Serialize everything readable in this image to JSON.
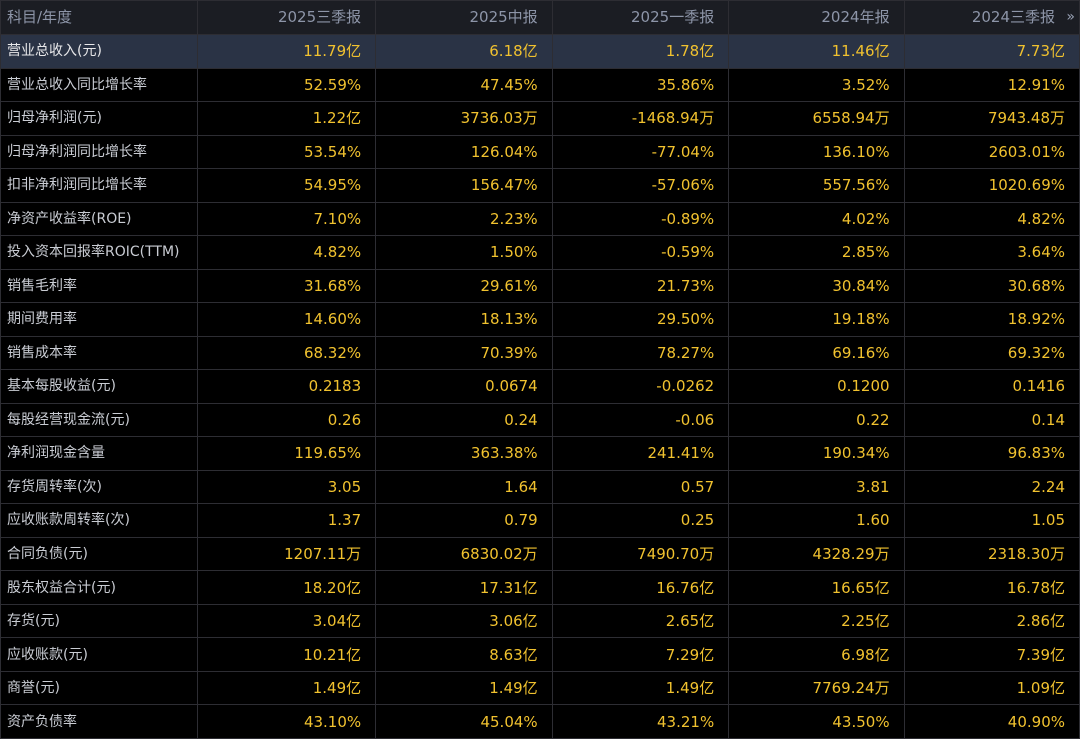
{
  "header": {
    "label": "科目/年度",
    "periods": [
      "2025三季报",
      "2025中报",
      "2025一季报",
      "2024年报",
      "2024三季报"
    ],
    "expand_icon": "»"
  },
  "colors": {
    "value_text": "#f1c22f",
    "label_text": "#c9ccd3",
    "header_text": "#8d95a8",
    "selected_row_bg": "#2a3345"
  },
  "rows": [
    {
      "label": "营业总收入(元)",
      "values": [
        "11.79亿",
        "6.18亿",
        "1.78亿",
        "11.46亿",
        "7.73亿"
      ]
    },
    {
      "label": "营业总收入同比增长率",
      "values": [
        "52.59%",
        "47.45%",
        "35.86%",
        "3.52%",
        "12.91%"
      ]
    },
    {
      "label": "归母净利润(元)",
      "values": [
        "1.22亿",
        "3736.03万",
        "-1468.94万",
        "6558.94万",
        "7943.48万"
      ]
    },
    {
      "label": "归母净利润同比增长率",
      "values": [
        "53.54%",
        "126.04%",
        "-77.04%",
        "136.10%",
        "2603.01%"
      ]
    },
    {
      "label": "扣非净利润同比增长率",
      "values": [
        "54.95%",
        "156.47%",
        "-57.06%",
        "557.56%",
        "1020.69%"
      ]
    },
    {
      "label": "净资产收益率(ROE)",
      "values": [
        "7.10%",
        "2.23%",
        "-0.89%",
        "4.02%",
        "4.82%"
      ]
    },
    {
      "label": "投入资本回报率ROIC(TTM)",
      "values": [
        "4.82%",
        "1.50%",
        "-0.59%",
        "2.85%",
        "3.64%"
      ]
    },
    {
      "label": "销售毛利率",
      "values": [
        "31.68%",
        "29.61%",
        "21.73%",
        "30.84%",
        "30.68%"
      ]
    },
    {
      "label": "期间费用率",
      "values": [
        "14.60%",
        "18.13%",
        "29.50%",
        "19.18%",
        "18.92%"
      ]
    },
    {
      "label": "销售成本率",
      "values": [
        "68.32%",
        "70.39%",
        "78.27%",
        "69.16%",
        "69.32%"
      ]
    },
    {
      "label": "基本每股收益(元)",
      "values": [
        "0.2183",
        "0.0674",
        "-0.0262",
        "0.1200",
        "0.1416"
      ]
    },
    {
      "label": "每股经营现金流(元)",
      "values": [
        "0.26",
        "0.24",
        "-0.06",
        "0.22",
        "0.14"
      ]
    },
    {
      "label": "净利润现金含量",
      "values": [
        "119.65%",
        "363.38%",
        "241.41%",
        "190.34%",
        "96.83%"
      ]
    },
    {
      "label": "存货周转率(次)",
      "values": [
        "3.05",
        "1.64",
        "0.57",
        "3.81",
        "2.24"
      ]
    },
    {
      "label": "应收账款周转率(次)",
      "values": [
        "1.37",
        "0.79",
        "0.25",
        "1.60",
        "1.05"
      ]
    },
    {
      "label": "合同负债(元)",
      "values": [
        "1207.11万",
        "6830.02万",
        "7490.70万",
        "4328.29万",
        "2318.30万"
      ]
    },
    {
      "label": "股东权益合计(元)",
      "values": [
        "18.20亿",
        "17.31亿",
        "16.76亿",
        "16.65亿",
        "16.78亿"
      ]
    },
    {
      "label": "存货(元)",
      "values": [
        "3.04亿",
        "3.06亿",
        "2.65亿",
        "2.25亿",
        "2.86亿"
      ]
    },
    {
      "label": "应收账款(元)",
      "values": [
        "10.21亿",
        "8.63亿",
        "7.29亿",
        "6.98亿",
        "7.39亿"
      ]
    },
    {
      "label": "商誉(元)",
      "values": [
        "1.49亿",
        "1.49亿",
        "1.49亿",
        "7769.24万",
        "1.09亿"
      ]
    },
    {
      "label": "资产负债率",
      "values": [
        "43.10%",
        "45.04%",
        "43.21%",
        "43.50%",
        "40.90%"
      ]
    }
  ],
  "selected_row": 0
}
